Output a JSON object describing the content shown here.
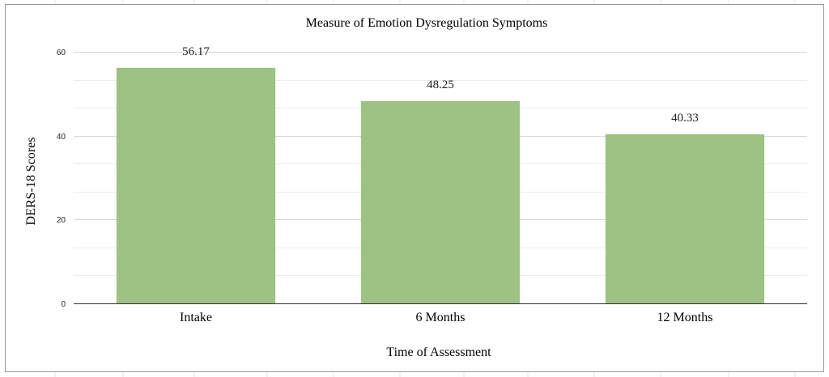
{
  "colors": {
    "bar": "#9ec283",
    "gridline": "#d6d6d6",
    "minor_gridline": "#ececec",
    "baseline": "#333333"
  },
  "chart_data": {
    "type": "bar",
    "title": "Measure of Emotion Dysregulation Symptoms",
    "xlabel": "Time of Assessment",
    "ylabel": "DERS-18 Scores",
    "categories": [
      "Intake",
      "6 Months",
      "12 Months"
    ],
    "values": [
      56.17,
      48.25,
      40.33
    ],
    "data_labels": [
      "56.17",
      "48.25",
      "40.33"
    ],
    "ylim": [
      0,
      60
    ],
    "yticks": [
      0,
      20,
      40,
      60
    ],
    "y_minor_step": 6.666666666666667,
    "grid": true,
    "legend": "none"
  }
}
